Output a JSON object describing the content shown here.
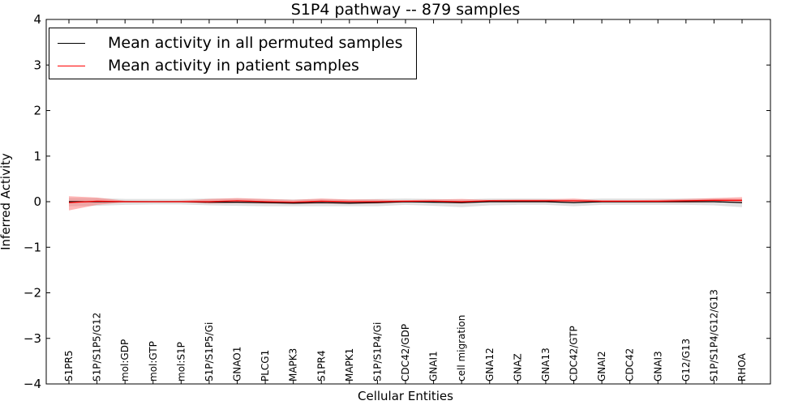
{
  "chart_data": {
    "type": "line",
    "title": "S1P4 pathway -- 879 samples",
    "xlabel": "Cellular Entities",
    "ylabel": "Inferred Activity",
    "ylim": [
      -4,
      4
    ],
    "yticks": [
      -4,
      -3,
      -2,
      -1,
      0,
      1,
      2,
      3,
      4
    ],
    "ytick_labels": [
      "−4",
      "−3",
      "−2",
      "−1",
      "0",
      "1",
      "2",
      "3",
      "4"
    ],
    "categories": [
      "S1PR5",
      "S1P/S1P5/G12",
      "mol:GDP",
      "mol:GTP",
      "mol:S1P",
      "S1P/S1P5/Gi",
      "GNAO1",
      "PLCG1",
      "MAPK3",
      "S1PR4",
      "MAPK1",
      "S1P/S1P4/Gi",
      "CDC42/GDP",
      "GNAI1",
      "cell migration",
      "GNA12",
      "GNAZ",
      "GNA13",
      "CDC42/GTP",
      "GNAI2",
      "CDC42",
      "GNAI3",
      "G12/G13",
      "S1P/S1P4/G12/G13",
      "RHOA"
    ],
    "series": [
      {
        "name": "Mean activity in all permuted samples",
        "color": "#000000",
        "values": [
          0,
          0,
          0,
          0,
          0,
          -0.01,
          -0.01,
          -0.02,
          -0.03,
          -0.02,
          -0.03,
          -0.02,
          0,
          -0.01,
          -0.02,
          0,
          0,
          0,
          -0.02,
          0,
          0,
          0,
          0,
          0,
          -0.02
        ],
        "band_lower": [
          -0.1,
          -0.09,
          -0.07,
          -0.06,
          -0.06,
          -0.08,
          -0.09,
          -0.1,
          -0.1,
          -0.1,
          -0.1,
          -0.1,
          -0.07,
          -0.09,
          -0.12,
          -0.08,
          -0.07,
          -0.07,
          -0.1,
          -0.07,
          -0.07,
          -0.07,
          -0.07,
          -0.08,
          -0.12
        ],
        "band_upper": [
          0.08,
          0.08,
          0.06,
          0.06,
          0.06,
          0.07,
          0.07,
          0.06,
          0.05,
          0.06,
          0.05,
          0.06,
          0.07,
          0.06,
          0.05,
          0.07,
          0.07,
          0.07,
          0.05,
          0.07,
          0.07,
          0.07,
          0.07,
          0.07,
          0.06
        ],
        "band_color": "#bbbbbb"
      },
      {
        "name": "Mean activity in patient samples",
        "color": "#ff0000",
        "values": [
          -0.02,
          0.01,
          0,
          0,
          0,
          0,
          0.02,
          0,
          -0.01,
          0.01,
          0,
          0,
          0.01,
          0.01,
          0,
          0.02,
          0.02,
          0.02,
          0.02,
          0.01,
          0.01,
          0.01,
          0.02,
          0.03,
          0.03
        ],
        "band_lower": [
          -0.19,
          -0.07,
          -0.01,
          -0.01,
          -0.01,
          -0.04,
          -0.03,
          -0.04,
          -0.05,
          -0.04,
          -0.05,
          -0.04,
          -0.02,
          -0.02,
          -0.04,
          -0.01,
          -0.01,
          -0.01,
          -0.02,
          -0.02,
          -0.02,
          -0.02,
          -0.02,
          -0.01,
          -0.01
        ],
        "band_upper": [
          0.12,
          0.09,
          0.02,
          0.01,
          0.02,
          0.06,
          0.08,
          0.06,
          0.04,
          0.07,
          0.05,
          0.05,
          0.03,
          0.05,
          0.06,
          0.04,
          0.05,
          0.05,
          0.07,
          0.03,
          0.03,
          0.04,
          0.06,
          0.08,
          0.1
        ],
        "band_color": "#ff6060"
      }
    ],
    "legend_position": "upper left",
    "grid": false
  }
}
